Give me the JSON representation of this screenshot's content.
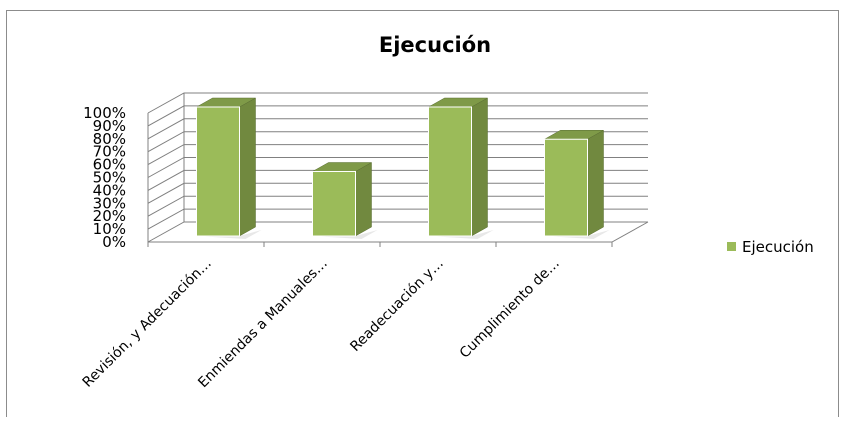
{
  "chart_data": {
    "type": "bar",
    "title": "Ejecución",
    "categories": [
      "Revisión, y Adecuación…",
      "Enmiendas a Manuales…",
      "Readecuación y…",
      "Cumplimiento de…"
    ],
    "series": [
      {
        "name": "Ejecución",
        "values": [
          1.0,
          0.5,
          1.0,
          0.75
        ]
      }
    ],
    "y_ticks": [
      "0%",
      "10%",
      "20%",
      "30%",
      "40%",
      "50%",
      "60%",
      "70%",
      "80%",
      "90%",
      "100%"
    ],
    "ylim": [
      0,
      1
    ],
    "grid": true,
    "legend_position": "right",
    "style": "3d-column",
    "colors": {
      "bar_front": "#9bbb59",
      "bar_side": "#71893f",
      "bar_top": "#7f9a48",
      "grid": "#808080"
    }
  }
}
